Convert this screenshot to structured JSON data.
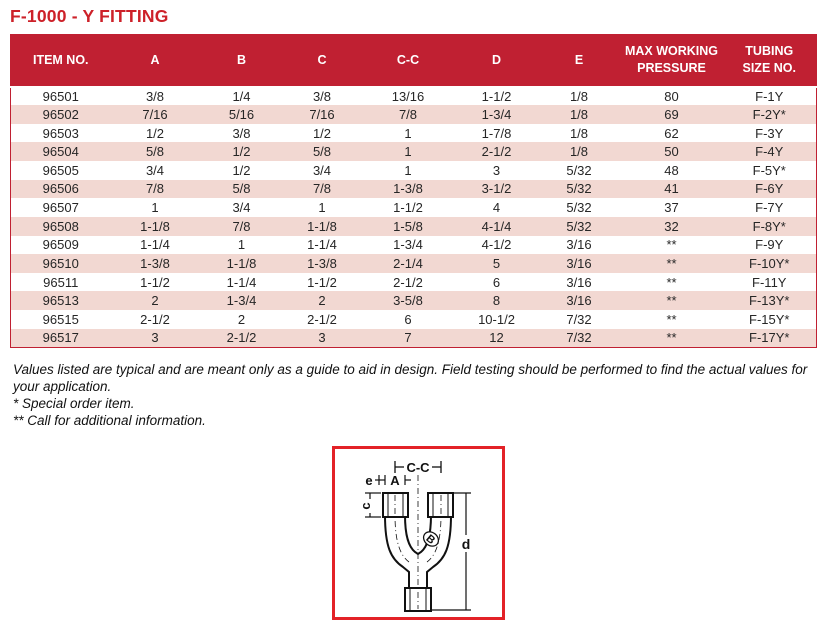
{
  "page": {
    "title": "F-1000 - Y FITTING"
  },
  "colors": {
    "header_red": "#c02032",
    "stripe_pink": "#f2d8d2",
    "title_red": "#cd2129",
    "box_red": "#e32227",
    "table_border": "#c02032"
  },
  "table": {
    "headers": [
      [
        "ITEM NO."
      ],
      [
        "A"
      ],
      [
        "B"
      ],
      [
        "C"
      ],
      [
        "C-C"
      ],
      [
        "D"
      ],
      [
        "E"
      ],
      [
        "MAX  WORKING",
        "PRESSURE"
      ],
      [
        "TUBING",
        "SIZE NO."
      ]
    ],
    "rows": [
      [
        "96501",
        "3/8",
        "1/4",
        "3/8",
        "13/16",
        "1-1/2",
        "1/8",
        "80",
        "F-1Y"
      ],
      [
        "96502",
        "7/16",
        "5/16",
        "7/16",
        "7/8",
        "1-3/4",
        "1/8",
        "69",
        "F-2Y*"
      ],
      [
        "96503",
        "1/2",
        "3/8",
        "1/2",
        "1",
        "1-7/8",
        "1/8",
        "62",
        "F-3Y"
      ],
      [
        "96504",
        "5/8",
        "1/2",
        "5/8",
        "1",
        "2-1/2",
        "1/8",
        "50",
        "F-4Y"
      ],
      [
        "96505",
        "3/4",
        "1/2",
        "3/4",
        "1",
        "3",
        "5/32",
        "48",
        "F-5Y*"
      ],
      [
        "96506",
        "7/8",
        "5/8",
        "7/8",
        "1-3/8",
        "3-1/2",
        "5/32",
        "41",
        "F-6Y"
      ],
      [
        "96507",
        "1",
        "3/4",
        "1",
        "1-1/2",
        "4",
        "5/32",
        "37",
        "F-7Y"
      ],
      [
        "96508",
        "1-1/8",
        "7/8",
        "1-1/8",
        "1-5/8",
        "4-1/4",
        "5/32",
        "32",
        "F-8Y*"
      ],
      [
        "96509",
        "1-1/4",
        "1",
        "1-1/4",
        "1-3/4",
        "4-1/2",
        "3/16",
        "**",
        "F-9Y"
      ],
      [
        "96510",
        "1-3/8",
        "1-1/8",
        "1-3/8",
        "2-1/4",
        "5",
        "3/16",
        "**",
        "F-10Y*"
      ],
      [
        "96511",
        "1-1/2",
        "1-1/4",
        "1-1/2",
        "2-1/2",
        "6",
        "3/16",
        "**",
        "F-11Y"
      ],
      [
        "96513",
        "2",
        "1-3/4",
        "2",
        "3-5/8",
        "8",
        "3/16",
        "**",
        "F-13Y*"
      ],
      [
        "96515",
        "2-1/2",
        "2",
        "2-1/2",
        "6",
        "10-1/2",
        "7/32",
        "**",
        "F-15Y*"
      ],
      [
        "96517",
        "3",
        "2-1/2",
        "3",
        "7",
        "12",
        "7/32",
        "**",
        "F-17Y*"
      ]
    ]
  },
  "notes": {
    "note1": "Values listed are typical and are meant only as a guide to aid in design. Field testing should be performed to find the actual values for your application.",
    "note2": "* Special order item.",
    "note3": "** Call for additional information."
  },
  "diagram": {
    "labels": {
      "cc": "C-C",
      "e": "e",
      "a": "A",
      "c": "c",
      "d": "d",
      "b": "B"
    }
  }
}
